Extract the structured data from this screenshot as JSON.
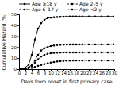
{
  "chart_data": {
    "type": "line",
    "xlabel": "Days from onset in first primary case",
    "ylabel": "Cumulative Hazard (%)",
    "x": [
      0,
      1,
      2,
      3,
      4,
      5,
      6,
      7,
      8,
      9,
      10,
      11,
      12,
      13,
      14,
      15,
      16,
      17,
      18,
      19,
      20,
      22,
      24,
      26,
      28,
      30
    ],
    "series": [
      {
        "name": "Age ≥18 y",
        "color": "black",
        "marker": "square",
        "line_style": "solid",
        "values": [
          0,
          0.3,
          1.5,
          4,
          13,
          27,
          37,
          42,
          45,
          46.5,
          47,
          47.3,
          47.5,
          47.7,
          47.8,
          47.9,
          48.0,
          48.0,
          48.0,
          48.0,
          48.0,
          48.0,
          48.0,
          48.0,
          48.0,
          48.0
        ]
      },
      {
        "name": "Age 6–17 y",
        "color": "black",
        "marker": "square",
        "line_style": "dashed",
        "values": [
          0,
          0.1,
          0.5,
          1.5,
          4,
          8,
          13,
          17,
          19,
          20,
          21,
          21.5,
          22,
          22.2,
          22.3,
          22.4,
          22.5,
          22.5,
          22.5,
          22.5,
          22.5,
          22.5,
          22.5,
          22.5,
          22.5,
          22.5
        ]
      },
      {
        "name": "Age 2–5 y",
        "color": "black",
        "marker": "square",
        "line_style": "dashdot",
        "values": [
          0,
          0.1,
          0.4,
          1.2,
          3.0,
          6,
          9,
          11.5,
          13,
          14,
          14.5,
          14.8,
          15.0,
          15.1,
          15.2,
          15.2,
          15.2,
          15.2,
          15.2,
          15.2,
          15.2,
          15.2,
          15.2,
          15.2,
          15.2,
          15.2
        ]
      },
      {
        "name": "Age <2 y",
        "color": "black",
        "marker": "square",
        "line_style": "dotted",
        "values": [
          0,
          0.05,
          0.2,
          0.6,
          1.2,
          2.0,
          3.0,
          3.8,
          4.6,
          5.3,
          6.0,
          6.5,
          7.0,
          7.3,
          7.5,
          7.7,
          7.8,
          7.9,
          7.9,
          7.9,
          7.9,
          7.9,
          7.9,
          7.9,
          7.9,
          7.9
        ]
      }
    ],
    "xlim": [
      0,
      30
    ],
    "ylim": [
      0,
      50
    ],
    "xticks": [
      0,
      2,
      4,
      6,
      8,
      10,
      12,
      14,
      16,
      18,
      20,
      22,
      24,
      26,
      28,
      30
    ],
    "yticks": [
      0,
      10,
      20,
      30,
      40,
      50
    ],
    "legend": "top",
    "grid": false
  }
}
